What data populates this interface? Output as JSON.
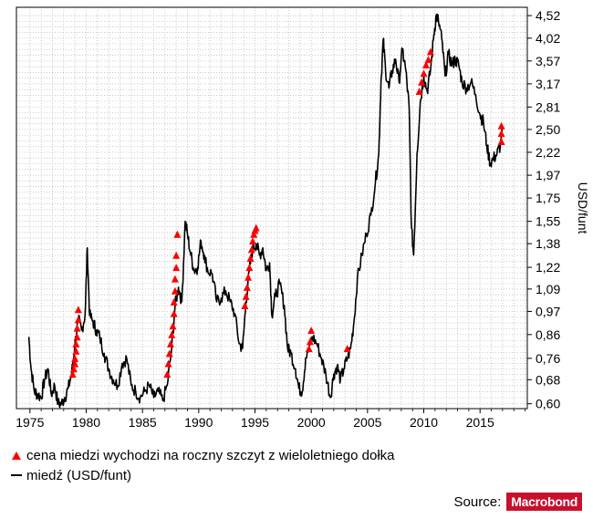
{
  "chart_data": {
    "type": "line",
    "title": "",
    "xlabel": "",
    "ylabel": "USD/funt",
    "y_scale": "log",
    "xlim": [
      1973.8,
      2019.2
    ],
    "ylim": [
      0.585,
      4.72
    ],
    "x_ticks": [
      1975,
      1980,
      1985,
      1990,
      1995,
      2000,
      2005,
      2010,
      2015
    ],
    "x_tick_labels": [
      "1975",
      "1980",
      "1985",
      "1990",
      "1995",
      "2000",
      "2005",
      "2010",
      "2015"
    ],
    "y_ticks": [
      0.6,
      0.68,
      0.76,
      0.86,
      0.97,
      1.09,
      1.22,
      1.38,
      1.55,
      1.75,
      1.97,
      2.22,
      2.5,
      2.81,
      3.17,
      3.57,
      4.02,
      4.52
    ],
    "y_tick_labels": [
      "0,60",
      "0,68",
      "0,76",
      "0,86",
      "0,97",
      "1,09",
      "1,22",
      "1,38",
      "1,55",
      "1,75",
      "1,97",
      "2,22",
      "2,50",
      "2,81",
      "3,17",
      "3,57",
      "4,02",
      "4,52"
    ],
    "grid": true,
    "series": [
      {
        "name": "miedź (USD/funt)",
        "color": "#000000",
        "x": [
          1974.9,
          1975.1,
          1975.4,
          1975.7,
          1976.0,
          1976.3,
          1976.6,
          1976.9,
          1977.2,
          1977.5,
          1977.8,
          1978.1,
          1978.4,
          1978.7,
          1979.0,
          1979.3,
          1979.6,
          1979.9,
          1980.1,
          1980.3,
          1980.6,
          1980.9,
          1981.2,
          1981.6,
          1982.0,
          1982.4,
          1982.8,
          1983.2,
          1983.6,
          1984.0,
          1984.4,
          1984.8,
          1985.2,
          1985.6,
          1986.0,
          1986.4,
          1986.8,
          1987.2,
          1987.6,
          1987.9,
          1988.2,
          1988.5,
          1988.8,
          1989.0,
          1989.3,
          1989.6,
          1989.9,
          1990.2,
          1990.5,
          1990.8,
          1991.2,
          1991.6,
          1992.0,
          1992.4,
          1992.8,
          1993.2,
          1993.6,
          1993.9,
          1994.2,
          1994.5,
          1994.8,
          1995.1,
          1995.4,
          1995.7,
          1996.0,
          1996.3,
          1996.5,
          1996.8,
          1997.2,
          1997.6,
          1997.9,
          1998.2,
          1998.6,
          1998.9,
          1999.2,
          1999.5,
          1999.8,
          2000.1,
          2000.5,
          2000.9,
          2001.3,
          2001.7,
          2002.0,
          2002.3,
          2002.6,
          2002.9,
          2003.2,
          2003.5,
          2003.8,
          2004.1,
          2004.5,
          2004.9,
          2005.3,
          2005.7,
          2006.0,
          2006.2,
          2006.4,
          2006.6,
          2006.9,
          2007.2,
          2007.5,
          2007.8,
          2008.1,
          2008.4,
          2008.7,
          2008.9,
          2009.1,
          2009.4,
          2009.7,
          2010.0,
          2010.3,
          2010.6,
          2010.9,
          2011.1,
          2011.3,
          2011.6,
          2011.9,
          2012.2,
          2012.5,
          2012.8,
          2013.1,
          2013.4,
          2013.8,
          2014.2,
          2014.6,
          2015.0,
          2015.3,
          2015.6,
          2015.9,
          2016.2,
          2016.5,
          2016.8,
          2017.0
        ],
        "y": [
          0.85,
          0.72,
          0.64,
          0.63,
          0.62,
          0.68,
          0.72,
          0.63,
          0.66,
          0.6,
          0.6,
          0.62,
          0.65,
          0.7,
          0.82,
          0.93,
          0.88,
          0.95,
          1.35,
          0.95,
          0.92,
          0.88,
          0.85,
          0.78,
          0.72,
          0.68,
          0.66,
          0.74,
          0.76,
          0.66,
          0.64,
          0.62,
          0.64,
          0.66,
          0.62,
          0.64,
          0.61,
          0.66,
          0.8,
          1.0,
          1.1,
          1.02,
          1.55,
          1.45,
          1.3,
          1.2,
          1.22,
          1.4,
          1.3,
          1.2,
          1.18,
          1.02,
          1.04,
          1.08,
          1.02,
          0.96,
          0.82,
          0.8,
          1.02,
          1.2,
          1.35,
          1.38,
          1.3,
          1.35,
          1.2,
          1.25,
          0.95,
          1.05,
          1.12,
          1.0,
          0.8,
          0.78,
          0.72,
          0.65,
          0.64,
          0.76,
          0.8,
          0.85,
          0.82,
          0.76,
          0.7,
          0.62,
          0.7,
          0.73,
          0.68,
          0.72,
          0.76,
          0.8,
          0.92,
          1.15,
          1.3,
          1.45,
          1.6,
          1.9,
          2.2,
          3.2,
          4.0,
          3.4,
          3.1,
          3.4,
          3.6,
          3.2,
          3.8,
          3.4,
          2.8,
          1.5,
          1.3,
          2.2,
          2.9,
          3.3,
          3.05,
          3.4,
          4.1,
          4.52,
          4.4,
          4.0,
          3.3,
          3.7,
          3.5,
          3.6,
          3.5,
          3.2,
          3.1,
          3.2,
          3.0,
          2.7,
          2.6,
          2.3,
          2.1,
          2.15,
          2.2,
          2.3,
          2.5
        ]
      },
      {
        "name": "cena miedzi wychodzi na roczny szczyt z wieloletniego dołka",
        "color": "#ff0000",
        "marker": "triangle",
        "x": [
          1978.8,
          1978.9,
          1979.0,
          1979.0,
          1979.1,
          1979.1,
          1979.2,
          1979.2,
          1979.3,
          1979.3,
          1987.2,
          1987.3,
          1987.4,
          1987.5,
          1987.6,
          1987.7,
          1987.8,
          1987.8,
          1987.9,
          1987.9,
          1988.0,
          1988.0,
          1988.1,
          1994.1,
          1994.2,
          1994.3,
          1994.4,
          1994.5,
          1994.6,
          1994.7,
          1994.8,
          1994.9,
          1995.0,
          1995.1,
          1999.8,
          1999.9,
          2000.0,
          2003.2,
          2009.6,
          2009.8,
          2010.0,
          2010.2,
          2010.4,
          2010.6,
          2016.9,
          2016.9,
          2016.9
        ],
        "y": [
          0.7,
          0.72,
          0.74,
          0.76,
          0.79,
          0.82,
          0.85,
          0.89,
          0.93,
          0.98,
          0.7,
          0.74,
          0.78,
          0.82,
          0.86,
          0.9,
          0.96,
          1.02,
          1.08,
          1.15,
          1.22,
          1.3,
          1.45,
          1.0,
          1.05,
          1.1,
          1.16,
          1.22,
          1.28,
          1.34,
          1.4,
          1.45,
          1.48,
          1.5,
          0.8,
          0.83,
          0.88,
          0.8,
          3.05,
          3.2,
          3.35,
          3.5,
          3.6,
          3.75,
          2.35,
          2.45,
          2.55
        ]
      }
    ]
  },
  "legend": {
    "markers_label": "cena miedzi wychodzi na roczny szczyt z wieloletniego dołka",
    "line_label": "miedź (USD/funt)"
  },
  "source": {
    "label": "Source:",
    "brand": "Macrobond"
  }
}
